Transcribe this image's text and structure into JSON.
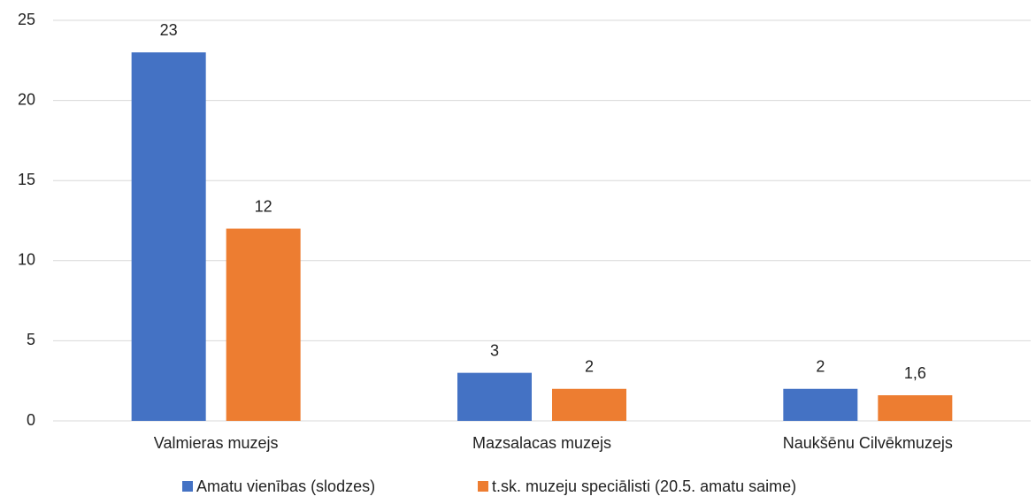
{
  "chart_data": {
    "type": "bar",
    "categories": [
      "Valmieras muzejs",
      "Mazsalacas muzejs",
      "Naukšēnu Cilvēkmuzejs"
    ],
    "series": [
      {
        "name": "Amatu vienības (slodzes)",
        "color": "#4472c4",
        "values": [
          23,
          3,
          2
        ]
      },
      {
        "name": "t.sk. muzeju speciālisti (20.5. amatu saime)",
        "color": "#ed7d31",
        "values": [
          12,
          2,
          1.6
        ],
        "value_labels": [
          "12",
          "2",
          "1,6"
        ]
      }
    ],
    "ylim": [
      0,
      25
    ],
    "yticks": [
      0,
      5,
      10,
      15,
      20,
      25
    ],
    "grid": true,
    "legend": "bottom"
  }
}
